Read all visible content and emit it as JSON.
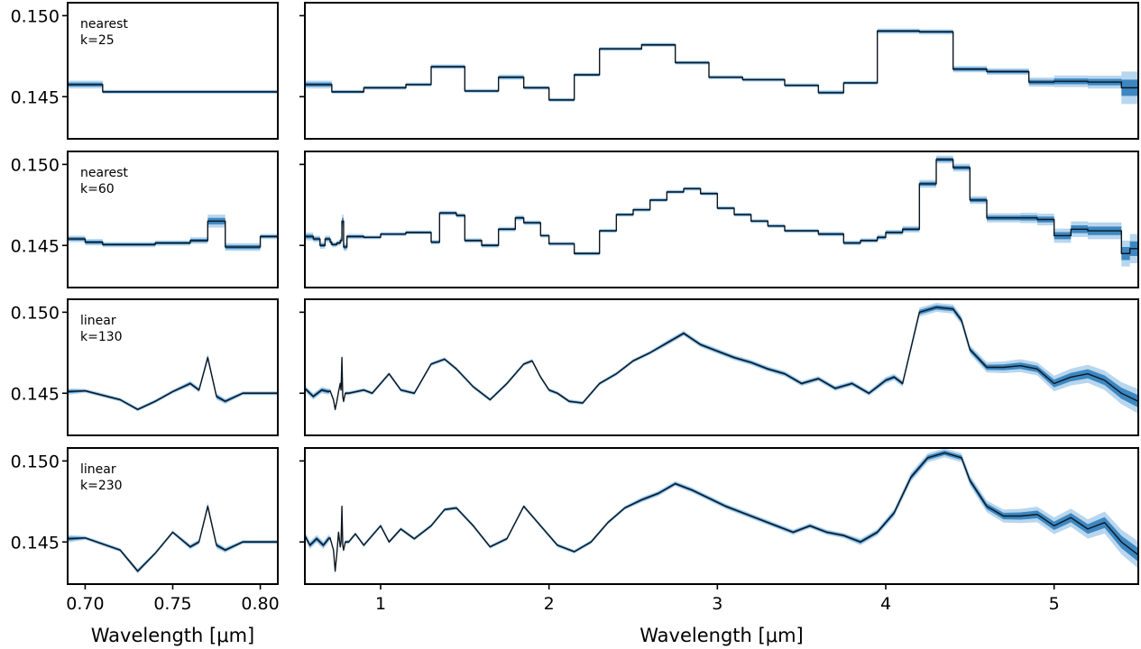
{
  "chart_data": {
    "type": "line",
    "xlabel_left": "Wavelength [μm]",
    "xlabel_right": "Wavelength [μm]",
    "ylim": [
      0.1424,
      0.1508
    ],
    "yticks": [
      0.145,
      0.15
    ],
    "ytick_labels": [
      "0.145",
      "0.150"
    ],
    "left_xlim": [
      0.69,
      0.81
    ],
    "left_xticks": [
      0.7,
      0.75,
      0.8
    ],
    "left_xtick_labels": [
      "0.70",
      "0.75",
      "0.80"
    ],
    "right_xlim": [
      0.55,
      5.5
    ],
    "right_xticks": [
      1,
      2,
      3,
      4,
      5
    ],
    "right_xtick_labels": [
      "1",
      "2",
      "3",
      "4",
      "5"
    ],
    "colors": {
      "line": "#0b1620",
      "band_outer": "#b8d6ee",
      "band_inner": "#3d87c0"
    },
    "panels": [
      {
        "method": "nearest",
        "k_label": "k=25",
        "step": true,
        "x": [
          0.55,
          0.71,
          0.9,
          1.15,
          1.3,
          1.5,
          1.7,
          1.85,
          2.0,
          2.15,
          2.3,
          2.55,
          2.75,
          2.95,
          3.15,
          3.4,
          3.6,
          3.75,
          3.95,
          4.2,
          4.4,
          4.6,
          4.85,
          5.0,
          5.2,
          5.4
        ],
        "y": [
          0.14575,
          0.1453,
          0.14555,
          0.14575,
          0.14685,
          0.14535,
          0.1462,
          0.14555,
          0.1448,
          0.14635,
          0.14795,
          0.1482,
          0.1471,
          0.1462,
          0.14605,
          0.1457,
          0.14525,
          0.14585,
          0.14905,
          0.149,
          0.1467,
          0.14655,
          0.1459,
          0.14595,
          0.1459,
          0.14555
        ],
        "err": [
          0.00012,
          6e-05,
          6e-05,
          6e-05,
          7e-05,
          6e-05,
          8e-05,
          6e-05,
          6e-05,
          6e-05,
          6e-05,
          6e-05,
          6e-05,
          6e-05,
          6e-05,
          6e-05,
          7e-05,
          6e-05,
          8e-05,
          8e-05,
          0.0001,
          0.0001,
          0.00014,
          0.00018,
          0.0002,
          0.0005
        ]
      },
      {
        "method": "nearest",
        "k_label": "k=60",
        "step": true,
        "x": [
          0.55,
          0.6,
          0.64,
          0.67,
          0.7,
          0.71,
          0.74,
          0.76,
          0.77,
          0.78,
          0.8,
          0.9,
          1.0,
          1.15,
          1.3,
          1.35,
          1.45,
          1.5,
          1.6,
          1.7,
          1.8,
          1.85,
          1.95,
          2.0,
          2.15,
          2.25,
          2.3,
          2.4,
          2.5,
          2.6,
          2.7,
          2.8,
          2.9,
          3.0,
          3.1,
          3.2,
          3.3,
          3.4,
          3.6,
          3.75,
          3.85,
          3.95,
          4.0,
          4.1,
          4.2,
          4.3,
          4.4,
          4.5,
          4.6,
          4.8,
          4.9,
          5.0,
          5.1,
          5.2,
          5.4,
          5.45
        ],
        "y": [
          0.14555,
          0.1454,
          0.145,
          0.1454,
          0.1452,
          0.14505,
          0.14515,
          0.1453,
          0.1465,
          0.1449,
          0.14555,
          0.1455,
          0.1457,
          0.1458,
          0.1452,
          0.147,
          0.14685,
          0.1453,
          0.145,
          0.146,
          0.1467,
          0.1464,
          0.1456,
          0.1451,
          0.1445,
          0.1445,
          0.1459,
          0.1469,
          0.1472,
          0.1478,
          0.1483,
          0.1485,
          0.1482,
          0.1473,
          0.1469,
          0.1465,
          0.1462,
          0.1459,
          0.1457,
          0.14515,
          0.1453,
          0.1455,
          0.1458,
          0.146,
          0.1488,
          0.1503,
          0.1498,
          0.1478,
          0.1467,
          0.1467,
          0.1466,
          0.1456,
          0.146,
          0.1459,
          0.1445,
          0.1448
        ],
        "err": [
          0.00012,
          0.0001,
          0.0001,
          0.0001,
          0.0001,
          8e-05,
          8e-05,
          0.0001,
          0.0002,
          0.00012,
          8e-05,
          6e-05,
          6e-05,
          6e-05,
          7e-05,
          7e-05,
          7e-05,
          7e-05,
          7e-05,
          7e-05,
          8e-05,
          7e-05,
          6e-05,
          6e-05,
          6e-05,
          6e-05,
          6e-05,
          6e-05,
          6e-05,
          6e-05,
          6e-05,
          6e-05,
          6e-05,
          6e-05,
          6e-05,
          6e-05,
          6e-05,
          6e-05,
          7e-05,
          7e-05,
          7e-05,
          8e-05,
          8e-05,
          0.0001,
          0.00012,
          0.00012,
          0.00012,
          0.00012,
          0.00014,
          0.00016,
          0.00018,
          0.00022,
          0.00024,
          0.00026,
          0.0004,
          0.00045
        ]
      },
      {
        "method": "linear",
        "k_label": "k=130",
        "step": false,
        "x": [
          0.55,
          0.6,
          0.65,
          0.69,
          0.7,
          0.72,
          0.73,
          0.74,
          0.75,
          0.76,
          0.765,
          0.77,
          0.775,
          0.78,
          0.79,
          0.81,
          0.9,
          0.95,
          1.05,
          1.12,
          1.2,
          1.3,
          1.38,
          1.45,
          1.55,
          1.65,
          1.75,
          1.85,
          1.9,
          1.95,
          2.0,
          2.05,
          2.12,
          2.2,
          2.3,
          2.4,
          2.5,
          2.6,
          2.7,
          2.8,
          2.9,
          3.0,
          3.1,
          3.2,
          3.3,
          3.4,
          3.5,
          3.6,
          3.7,
          3.8,
          3.9,
          4.0,
          4.05,
          4.1,
          4.2,
          4.3,
          4.4,
          4.45,
          4.5,
          4.6,
          4.7,
          4.8,
          4.9,
          5.0,
          5.1,
          5.2,
          5.3,
          5.4,
          5.5
        ],
        "y": [
          0.1453,
          0.1448,
          0.1452,
          0.1451,
          0.14515,
          0.1446,
          0.144,
          0.1445,
          0.1451,
          0.1456,
          0.1452,
          0.1472,
          0.1448,
          0.1445,
          0.145,
          0.145,
          0.1452,
          0.145,
          0.1462,
          0.1452,
          0.145,
          0.1468,
          0.1471,
          0.1465,
          0.1454,
          0.1446,
          0.1456,
          0.1468,
          0.147,
          0.146,
          0.1452,
          0.145,
          0.1445,
          0.1444,
          0.1456,
          0.1462,
          0.147,
          0.1475,
          0.1481,
          0.1487,
          0.148,
          0.1476,
          0.1472,
          0.1469,
          0.1465,
          0.1462,
          0.1456,
          0.1459,
          0.1453,
          0.1456,
          0.145,
          0.1458,
          0.146,
          0.1456,
          0.15,
          0.1503,
          0.1502,
          0.1495,
          0.1477,
          0.1466,
          0.1466,
          0.1467,
          0.1465,
          0.1456,
          0.146,
          0.1462,
          0.1458,
          0.145,
          0.1445
        ],
        "err": [
          0.0001,
          0.0001,
          0.0001,
          0.0001,
          6e-05,
          6e-05,
          6e-05,
          6e-05,
          6e-05,
          8e-05,
          8e-05,
          0.00012,
          0.0001,
          8e-05,
          6e-05,
          6e-05,
          6e-05,
          6e-05,
          6e-05,
          6e-05,
          6e-05,
          6e-05,
          6e-05,
          6e-05,
          6e-05,
          6e-05,
          6e-05,
          6e-05,
          6e-05,
          6e-05,
          6e-05,
          6e-05,
          6e-05,
          6e-05,
          6e-05,
          6e-05,
          6e-05,
          6e-05,
          8e-05,
          8e-05,
          8e-05,
          8e-05,
          8e-05,
          8e-05,
          8e-05,
          8e-05,
          8e-05,
          8e-05,
          8e-05,
          8e-05,
          8e-05,
          0.0001,
          0.0001,
          0.0001,
          0.00014,
          0.00014,
          0.00014,
          0.00014,
          0.00014,
          0.00016,
          0.00018,
          0.0002,
          0.0002,
          0.00024,
          0.00026,
          0.00028,
          0.0003,
          0.00034,
          0.00038
        ]
      },
      {
        "method": "linear",
        "k_label": "k=230",
        "step": false,
        "x": [
          0.55,
          0.58,
          0.62,
          0.66,
          0.69,
          0.7,
          0.72,
          0.73,
          0.74,
          0.75,
          0.76,
          0.765,
          0.77,
          0.775,
          0.78,
          0.79,
          0.81,
          0.85,
          0.9,
          0.95,
          1.0,
          1.05,
          1.12,
          1.2,
          1.3,
          1.38,
          1.45,
          1.55,
          1.65,
          1.75,
          1.85,
          1.95,
          2.05,
          2.15,
          2.25,
          2.35,
          2.45,
          2.55,
          2.65,
          2.75,
          2.85,
          2.95,
          3.05,
          3.15,
          3.25,
          3.35,
          3.45,
          3.55,
          3.65,
          3.75,
          3.85,
          3.95,
          4.05,
          4.15,
          4.25,
          4.35,
          4.45,
          4.5,
          4.6,
          4.7,
          4.8,
          4.9,
          5.0,
          5.1,
          5.2,
          5.3,
          5.4,
          5.5
        ],
        "y": [
          0.1454,
          0.1448,
          0.1452,
          0.1448,
          0.1452,
          0.14525,
          0.1445,
          0.1432,
          0.1443,
          0.1456,
          0.1447,
          0.145,
          0.1472,
          0.1448,
          0.1445,
          0.145,
          0.145,
          0.1455,
          0.1448,
          0.1454,
          0.146,
          0.145,
          0.1458,
          0.1452,
          0.146,
          0.147,
          0.1471,
          0.146,
          0.1447,
          0.1452,
          0.1472,
          0.146,
          0.1448,
          0.1444,
          0.145,
          0.1462,
          0.1471,
          0.1476,
          0.148,
          0.1486,
          0.1482,
          0.1477,
          0.1472,
          0.1468,
          0.1464,
          0.146,
          0.1456,
          0.146,
          0.1456,
          0.1454,
          0.145,
          0.1456,
          0.1468,
          0.149,
          0.1502,
          0.1505,
          0.1502,
          0.1488,
          0.1472,
          0.1466,
          0.1466,
          0.1467,
          0.146,
          0.1465,
          0.1458,
          0.1462,
          0.145,
          0.1442
        ],
        "err": [
          0.00012,
          0.00012,
          0.00012,
          0.00012,
          0.00012,
          6e-05,
          6e-05,
          8e-05,
          6e-05,
          6e-05,
          8e-05,
          8e-05,
          0.00012,
          0.0001,
          8e-05,
          6e-05,
          6e-05,
          6e-05,
          6e-05,
          6e-05,
          6e-05,
          6e-05,
          6e-05,
          6e-05,
          6e-05,
          6e-05,
          6e-05,
          6e-05,
          6e-05,
          6e-05,
          6e-05,
          6e-05,
          6e-05,
          6e-05,
          6e-05,
          6e-05,
          6e-05,
          8e-05,
          8e-05,
          8e-05,
          8e-05,
          8e-05,
          8e-05,
          8e-05,
          8e-05,
          8e-05,
          8e-05,
          8e-05,
          8e-05,
          8e-05,
          0.0001,
          0.0001,
          0.00012,
          0.00014,
          0.00014,
          0.00014,
          0.00014,
          0.00016,
          0.00018,
          0.0002,
          0.00022,
          0.00024,
          0.00026,
          0.00028,
          0.0003,
          0.00034,
          0.00038,
          0.00042
        ]
      }
    ]
  }
}
